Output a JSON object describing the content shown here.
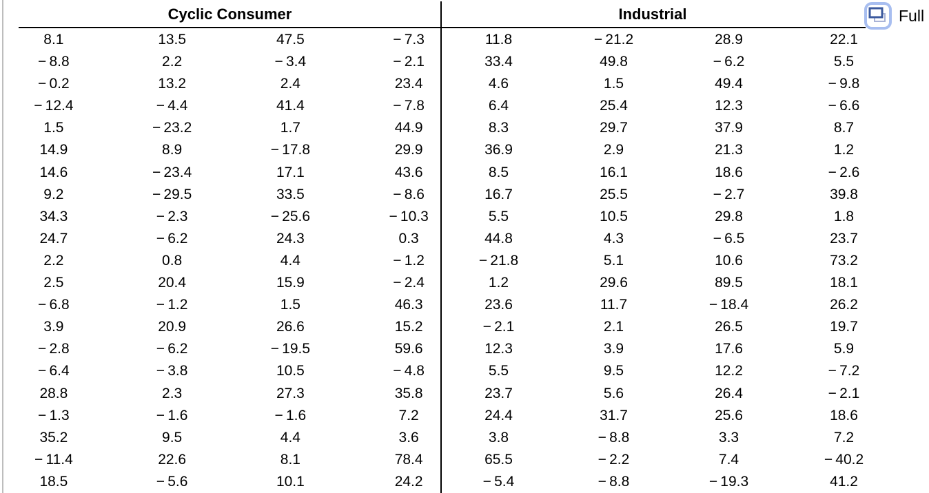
{
  "full_button": {
    "label": "Full",
    "icon": "restore-window-icon"
  },
  "colors": {
    "rule": "#000000",
    "panel_border": "#bdbdbd",
    "icon_border": "#a8bef0",
    "icon_front": "#3c5a9e",
    "icon_back": "#a9b3d6"
  },
  "sections": [
    {
      "title": "Cyclic Consumer",
      "rows": [
        [
          8.1,
          13.5,
          47.5,
          -7.3
        ],
        [
          -8.8,
          2.2,
          -3.4,
          -2.1
        ],
        [
          -0.2,
          13.2,
          2.4,
          23.4
        ],
        [
          -12.4,
          -4.4,
          41.4,
          -7.8
        ],
        [
          1.5,
          -23.2,
          1.7,
          44.9
        ],
        [
          14.9,
          8.9,
          -17.8,
          29.9
        ],
        [
          14.6,
          -23.4,
          17.1,
          43.6
        ],
        [
          9.2,
          -29.5,
          33.5,
          -8.6
        ],
        [
          34.3,
          -2.3,
          -25.6,
          -10.3
        ],
        [
          24.7,
          -6.2,
          24.3,
          0.3
        ],
        [
          2.2,
          0.8,
          4.4,
          -1.2
        ],
        [
          2.5,
          20.4,
          15.9,
          -2.4
        ],
        [
          -6.8,
          -1.2,
          1.5,
          46.3
        ],
        [
          3.9,
          20.9,
          26.6,
          15.2
        ],
        [
          -2.8,
          -6.2,
          -19.5,
          59.6
        ],
        [
          -6.4,
          -3.8,
          10.5,
          -4.8
        ],
        [
          28.8,
          2.3,
          27.3,
          35.8
        ],
        [
          -1.3,
          -1.6,
          -1.6,
          7.2
        ],
        [
          35.2,
          9.5,
          4.4,
          3.6
        ],
        [
          -11.4,
          22.6,
          8.1,
          78.4
        ],
        [
          18.5,
          -5.6,
          10.1,
          24.2
        ]
      ]
    },
    {
      "title": "Industrial",
      "rows": [
        [
          11.8,
          -21.2,
          28.9,
          22.1
        ],
        [
          33.4,
          49.8,
          -6.2,
          5.5
        ],
        [
          4.6,
          1.5,
          49.4,
          -9.8
        ],
        [
          6.4,
          25.4,
          12.3,
          -6.6
        ],
        [
          8.3,
          29.7,
          37.9,
          8.7
        ],
        [
          36.9,
          2.9,
          21.3,
          1.2
        ],
        [
          8.5,
          16.1,
          18.6,
          -2.6
        ],
        [
          16.7,
          25.5,
          -2.7,
          39.8
        ],
        [
          5.5,
          10.5,
          29.8,
          1.8
        ],
        [
          44.8,
          4.3,
          -6.5,
          23.7
        ],
        [
          -21.8,
          5.1,
          10.6,
          73.2
        ],
        [
          1.2,
          29.6,
          89.5,
          18.1
        ],
        [
          23.6,
          11.7,
          -18.4,
          26.2
        ],
        [
          -2.1,
          2.1,
          26.5,
          19.7
        ],
        [
          12.3,
          3.9,
          17.6,
          5.9
        ],
        [
          5.5,
          9.5,
          12.2,
          -7.2
        ],
        [
          23.7,
          5.6,
          26.4,
          -2.1
        ],
        [
          24.4,
          31.7,
          25.6,
          18.6
        ],
        [
          3.8,
          -8.8,
          3.3,
          7.2
        ],
        [
          65.5,
          -2.2,
          7.4,
          -40.2
        ],
        [
          -5.4,
          -8.8,
          -19.3,
          41.2
        ]
      ]
    }
  ]
}
